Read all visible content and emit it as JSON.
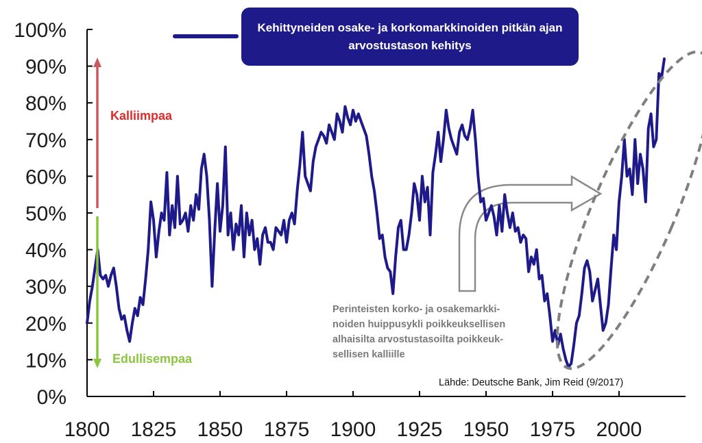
{
  "chart_data": {
    "type": "line",
    "title": "Kehittyneiden osake- ja korkomarkkinoiden pitkän ajan arvostustason kehitys",
    "xlabel": "",
    "ylabel": "",
    "xlim": [
      1800,
      2017
    ],
    "ylim": [
      0,
      100
    ],
    "x_ticks": [
      "1800",
      "1825",
      "1850",
      "1875",
      "1900",
      "1925",
      "1950",
      "1975",
      "2000"
    ],
    "y_ticks": [
      "0%",
      "10%",
      "20%",
      "30%",
      "40%",
      "50%",
      "60%",
      "70%",
      "80%",
      "90%",
      "100%"
    ],
    "grid": false,
    "legend": "top",
    "series_color": "#1f1a8a",
    "series": [
      {
        "name": "Kehittyneiden osake- ja korkomarkkinoiden pitkän ajan arvostustason kehitys",
        "x": [
          1800,
          1801,
          1802,
          1803,
          1804,
          1805,
          1806,
          1807,
          1808,
          1809,
          1810,
          1811,
          1812,
          1813,
          1814,
          1815,
          1816,
          1817,
          1818,
          1819,
          1820,
          1821,
          1822,
          1823,
          1824,
          1825,
          1826,
          1827,
          1828,
          1829,
          1830,
          1831,
          1832,
          1833,
          1834,
          1835,
          1836,
          1837,
          1838,
          1839,
          1840,
          1841,
          1842,
          1843,
          1844,
          1845,
          1846,
          1847,
          1848,
          1849,
          1850,
          1851,
          1852,
          1853,
          1854,
          1855,
          1856,
          1857,
          1858,
          1859,
          1860,
          1861,
          1862,
          1863,
          1864,
          1865,
          1866,
          1867,
          1868,
          1869,
          1870,
          1871,
          1872,
          1873,
          1874,
          1875,
          1876,
          1877,
          1878,
          1879,
          1880,
          1881,
          1882,
          1883,
          1884,
          1885,
          1886,
          1887,
          1888,
          1889,
          1890,
          1891,
          1892,
          1893,
          1894,
          1895,
          1896,
          1897,
          1898,
          1899,
          1900,
          1901,
          1902,
          1903,
          1904,
          1905,
          1906,
          1907,
          1908,
          1909,
          1910,
          1911,
          1912,
          1913,
          1914,
          1915,
          1916,
          1917,
          1918,
          1919,
          1920,
          1921,
          1922,
          1923,
          1924,
          1925,
          1926,
          1927,
          1928,
          1929,
          1930,
          1931,
          1932,
          1933,
          1934,
          1935,
          1936,
          1937,
          1938,
          1939,
          1940,
          1941,
          1942,
          1943,
          1944,
          1945,
          1946,
          1947,
          1948,
          1949,
          1950,
          1951,
          1952,
          1953,
          1954,
          1955,
          1956,
          1957,
          1958,
          1959,
          1960,
          1961,
          1962,
          1963,
          1964,
          1965,
          1966,
          1967,
          1968,
          1969,
          1970,
          1971,
          1972,
          1973,
          1974,
          1975,
          1976,
          1977,
          1978,
          1979,
          1980,
          1981,
          1982,
          1983,
          1984,
          1985,
          1986,
          1987,
          1988,
          1989,
          1990,
          1991,
          1992,
          1993,
          1994,
          1995,
          1996,
          1997,
          1998,
          1999,
          2000,
          2001,
          2002,
          2003,
          2004,
          2005,
          2006,
          2007,
          2008,
          2009,
          2010,
          2011,
          2012,
          2013,
          2014,
          2015,
          2016,
          2017
        ],
        "values": [
          20,
          26,
          30,
          35,
          40,
          33,
          32,
          33,
          30,
          33,
          35,
          30,
          24,
          21,
          22,
          18,
          15,
          20,
          24,
          22,
          27,
          25,
          32,
          40,
          53,
          48,
          38,
          45,
          50,
          48,
          61,
          44,
          52,
          46,
          60,
          47,
          48,
          50,
          45,
          52,
          48,
          55,
          51,
          62,
          66,
          60,
          48,
          30,
          45,
          58,
          45,
          52,
          68,
          44,
          50,
          40,
          47,
          44,
          52,
          38,
          50,
          44,
          48,
          40,
          43,
          36,
          44,
          46,
          42,
          42,
          40,
          46,
          45,
          44,
          48,
          42,
          48,
          50,
          47,
          56,
          63,
          72,
          60,
          58,
          56,
          64,
          68,
          70,
          72,
          71,
          69,
          74,
          72,
          70,
          77,
          75,
          72,
          79,
          76,
          74,
          78,
          75,
          77,
          75,
          73,
          71,
          66,
          60,
          56,
          50,
          43,
          44,
          38,
          35,
          34,
          28,
          38,
          46,
          48,
          40,
          40,
          44,
          50,
          58,
          55,
          48,
          60,
          53,
          57,
          44,
          61,
          66,
          72,
          64,
          70,
          78,
          73,
          70,
          68,
          66,
          72,
          74,
          71,
          70,
          73,
          78,
          70,
          60,
          53,
          54,
          48,
          50,
          52,
          49,
          44,
          52,
          45,
          55,
          50,
          46,
          50,
          45,
          46,
          42,
          44,
          43,
          34,
          38,
          36,
          40,
          32,
          33,
          26,
          28,
          22,
          15,
          18,
          14,
          17,
          13,
          10,
          8,
          9,
          14,
          20,
          22,
          28,
          35,
          37,
          34,
          26,
          29,
          32,
          25,
          18,
          20,
          25,
          35,
          44,
          40,
          53,
          60,
          70,
          60,
          62,
          55,
          70,
          58,
          66,
          62,
          53,
          73,
          77,
          68,
          70,
          88,
          87,
          92
        ]
      }
    ],
    "annotations": {
      "up_label": "Kalliimpaa",
      "down_label": "Edullisempaa",
      "note_lines": [
        "Perinteisten korko- ja osakemarkki-",
        "noiden huippusykli poikkeuksellisen",
        "alhaisilta arvostustasoilta poikkeuk-",
        "sellisen kalliille"
      ],
      "source": "Lähde: Deutsche Bank, Jim Reid (9/2017)",
      "up_arrow_color": "#c8595f",
      "down_arrow_color": "#8cc63f",
      "up_label_color": "#e02a2a",
      "down_label_color": "#8cc63f"
    }
  }
}
